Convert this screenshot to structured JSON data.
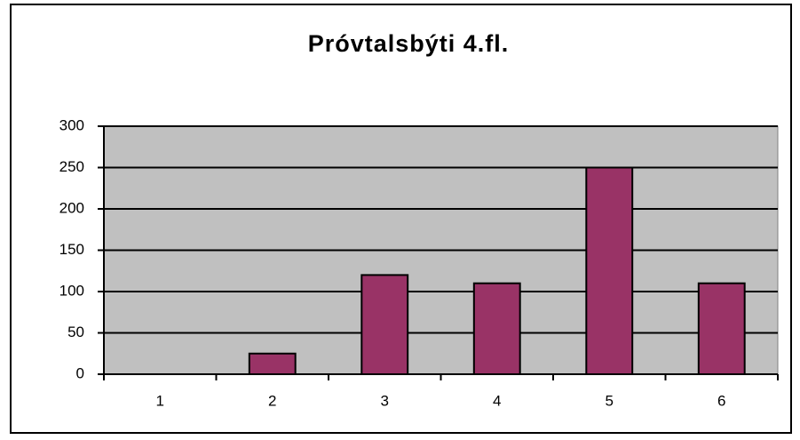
{
  "chart_data": {
    "type": "bar",
    "title": "Próvtalsbýti  4.fl.",
    "categories": [
      "1",
      "2",
      "3",
      "4",
      "5",
      "6"
    ],
    "values": [
      0,
      25,
      120,
      110,
      250,
      110
    ],
    "color": "#993366",
    "ylim": [
      0,
      300
    ],
    "yticks": [
      0,
      50,
      100,
      150,
      200,
      250,
      300
    ],
    "grid": true
  }
}
